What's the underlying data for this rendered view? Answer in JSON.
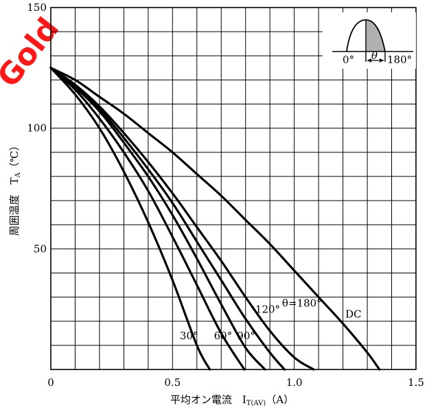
{
  "chart_data": {
    "type": "line",
    "title": "",
    "xlabel": "平均オン電流　I",
    "xlabel_sub": "T(AV)",
    "xlabel_unit": "（A）",
    "ylabel": "周囲温度　T",
    "ylabel_sub": "A",
    "ylabel_unit": "（℃）",
    "xlim": [
      0,
      1.5
    ],
    "ylim": [
      0,
      150
    ],
    "x_ticks": [
      {
        "value": 0,
        "label": "0"
      },
      {
        "value": 0.5,
        "label": "0.5"
      },
      {
        "value": 1.0,
        "label": "1.0"
      },
      {
        "value": 1.5,
        "label": "1.5"
      }
    ],
    "y_ticks": [
      {
        "value": 50,
        "label": "50"
      },
      {
        "value": 100,
        "label": "100"
      },
      {
        "value": 150,
        "label": "150"
      }
    ],
    "grid": true,
    "grid_x_step": 0.1,
    "grid_y_step": 10,
    "series": [
      {
        "name": "30°",
        "x": [
          0,
          0.1,
          0.2,
          0.3,
          0.4,
          0.5,
          0.6,
          0.653
        ],
        "y": [
          125,
          114,
          100,
          82,
          61,
          37,
          10,
          0
        ]
      },
      {
        "name": "60°",
        "x": [
          0,
          0.1,
          0.2,
          0.3,
          0.4,
          0.5,
          0.6,
          0.7,
          0.795
        ],
        "y": [
          125,
          116,
          104,
          90,
          74,
          55,
          35,
          15,
          0
        ]
      },
      {
        "name": "90°",
        "x": [
          0,
          0.1,
          0.2,
          0.3,
          0.4,
          0.5,
          0.6,
          0.7,
          0.8,
          0.88
        ],
        "y": [
          125,
          117,
          107,
          94,
          80,
          64,
          46,
          27,
          9,
          0
        ]
      },
      {
        "name": "120°",
        "x": [
          0,
          0.1,
          0.2,
          0.3,
          0.4,
          0.5,
          0.6,
          0.7,
          0.8,
          0.9,
          0.96
        ],
        "y": [
          125,
          117,
          108,
          96,
          83,
          69,
          53,
          37,
          21,
          7,
          0
        ]
      },
      {
        "name": "θ=180°",
        "x": [
          0,
          0.1,
          0.2,
          0.3,
          0.4,
          0.5,
          0.6,
          0.7,
          0.8,
          0.9,
          1.0,
          1.08
        ],
        "y": [
          125,
          118,
          109,
          98,
          86,
          73,
          59,
          45,
          30,
          16,
          5,
          0
        ]
      },
      {
        "name": "DC",
        "x": [
          0,
          0.1,
          0.2,
          0.3,
          0.4,
          0.5,
          0.6,
          0.7,
          0.8,
          0.9,
          1.0,
          1.1,
          1.2,
          1.3,
          1.35
        ],
        "y": [
          125,
          120,
          113,
          106,
          98,
          90,
          81,
          72,
          62,
          52,
          41,
          30,
          19,
          7,
          0
        ]
      }
    ],
    "curve_labels": [
      {
        "series": "30°",
        "text": "30°",
        "x": 0.53,
        "y": 12.5
      },
      {
        "series": "60°",
        "text": "60°",
        "x": 0.67,
        "y": 12.5
      },
      {
        "series": "90°",
        "text": "90°",
        "x": 0.765,
        "y": 12.5
      },
      {
        "series": "120°",
        "text": "120°",
        "x": 0.84,
        "y": 23.5
      },
      {
        "series": "θ=180°",
        "text": "θ=180°",
        "x": 0.95,
        "y": 26
      },
      {
        "series": "DC",
        "text": "DC",
        "x": 1.21,
        "y": 21.5
      }
    ],
    "inset": {
      "labels": [
        "0°",
        "θ",
        "180°"
      ]
    }
  },
  "watermark": {
    "text": "Gold"
  }
}
